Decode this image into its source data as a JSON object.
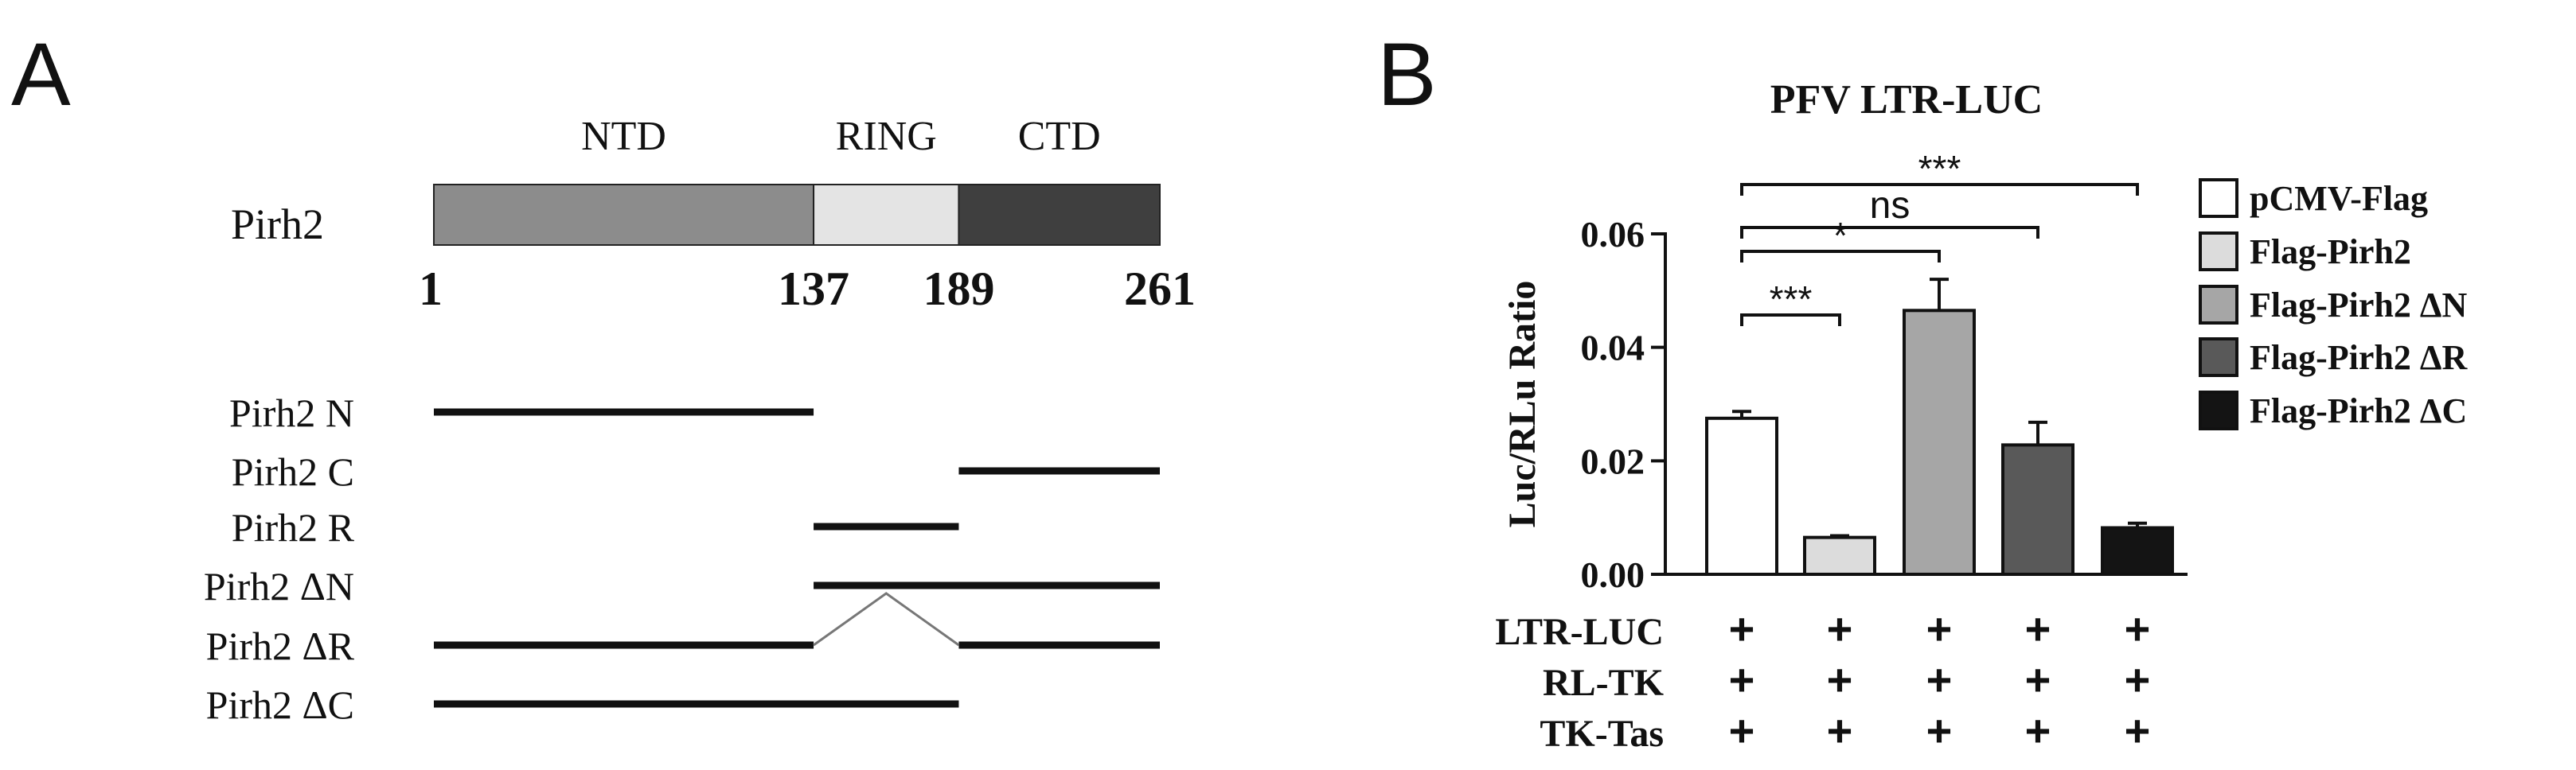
{
  "panel_a": {
    "letter": "A",
    "protein_name": "Pirh2",
    "domains": [
      {
        "name": "NTD",
        "start": 1,
        "end": 137,
        "color": "#8c8c8c"
      },
      {
        "name": "RING",
        "start": 137,
        "end": 189,
        "color": "#e4e4e4"
      },
      {
        "name": "CTD",
        "start": 189,
        "end": 261,
        "color": "#3f3f3f"
      }
    ],
    "positions": [
      "1",
      "137",
      "189",
      "261"
    ],
    "constructs": [
      {
        "label": "Pirh2 N",
        "segments": [
          [
            1,
            137
          ]
        ]
      },
      {
        "label": "Pirh2 C",
        "segments": [
          [
            189,
            261
          ]
        ]
      },
      {
        "label": "Pirh2 R",
        "segments": [
          [
            137,
            189
          ]
        ]
      },
      {
        "label": "Pirh2 ΔN",
        "segments": [
          [
            137,
            261
          ]
        ]
      },
      {
        "label": "Pirh2 ΔR",
        "segments": [
          [
            1,
            137
          ],
          [
            189,
            261
          ]
        ],
        "gap": true
      },
      {
        "label": "Pirh2 ΔC",
        "segments": [
          [
            1,
            189
          ]
        ]
      }
    ]
  },
  "chart_data": {
    "type": "bar",
    "panel_letter": "B",
    "title": "PFV LTR-LUC",
    "xlabel": "",
    "ylabel": "Luc/RLu Ratio",
    "ylim": [
      0,
      0.06
    ],
    "yticks": [
      "0.00",
      "0.02",
      "0.04",
      "0.06"
    ],
    "categories": [
      "pCMV-Flag",
      "Flag-Pirh2",
      "Flag-Pirh2 ΔN",
      "Flag-Pirh2 ΔR",
      "Flag-Pirh2 ΔC"
    ],
    "values": [
      0.0275,
      0.0065,
      0.0465,
      0.0228,
      0.0082
    ],
    "errors": [
      0.0012,
      0.0003,
      0.0055,
      0.004,
      0.0008
    ],
    "colors": [
      "#ffffff",
      "#dcdcdc",
      "#a6a6a6",
      "#595959",
      "#141414"
    ],
    "legend": {
      "position": "right",
      "items": [
        "pCMV-Flag",
        "Flag-Pirh2",
        "Flag-Pirh2 ΔN",
        "Flag-Pirh2 ΔR",
        "Flag-Pirh2 ΔC"
      ]
    },
    "significance": [
      {
        "from": 0,
        "to": 1,
        "label": "***"
      },
      {
        "from": 0,
        "to": 2,
        "label": "*"
      },
      {
        "from": 0,
        "to": 3,
        "label": "ns"
      },
      {
        "from": 0,
        "to": 4,
        "label": "***"
      }
    ],
    "conditions": [
      {
        "label": "LTR-LUC",
        "marks": [
          "+",
          "+",
          "+",
          "+",
          "+"
        ]
      },
      {
        "label": "RL-TK",
        "marks": [
          "+",
          "+",
          "+",
          "+",
          "+"
        ]
      },
      {
        "label": "TK-Tas",
        "marks": [
          "+",
          "+",
          "+",
          "+",
          "+"
        ]
      }
    ]
  }
}
